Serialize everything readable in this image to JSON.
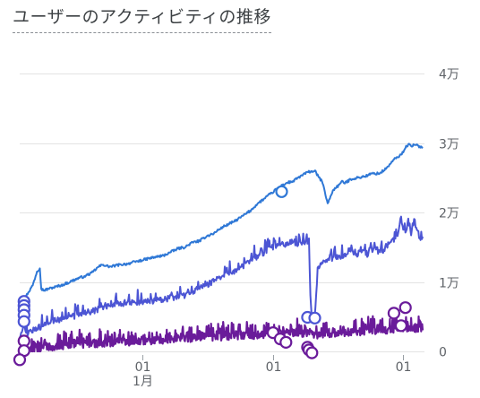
{
  "header": {
    "title": "ユーザーのアクティビティの推移"
  },
  "chart_data": {
    "type": "line",
    "title": "ユーザーのアクティビティの推移",
    "xlabel": "",
    "ylabel": "",
    "ylim": [
      0,
      40000
    ],
    "grid": true,
    "legend": "none",
    "y_ticks": [
      {
        "value": 0,
        "label": "0"
      },
      {
        "value": 10000,
        "label": "1万"
      },
      {
        "value": 20000,
        "label": "2万"
      },
      {
        "value": 30000,
        "label": "3万"
      },
      {
        "value": 40000,
        "label": "4万"
      }
    ],
    "x_ticks": [
      {
        "day": 85,
        "label": "01",
        "sublabel": "1月"
      },
      {
        "day": 176,
        "label": "01",
        "sublabel": ""
      },
      {
        "day": 266,
        "label": "01",
        "sublabel": ""
      }
    ],
    "x_range_days": [
      0,
      280
    ],
    "series": [
      {
        "color": "#2f78d6",
        "x": [
          0,
          3,
          6,
          9,
          12,
          14,
          15,
          17,
          20,
          25,
          30,
          35,
          40,
          45,
          50,
          55,
          58,
          60,
          63,
          70,
          75,
          80,
          85,
          90,
          95,
          100,
          105,
          110,
          115,
          120,
          125,
          130,
          135,
          140,
          145,
          150,
          155,
          160,
          165,
          170,
          175,
          180,
          185,
          190,
          195,
          200,
          205,
          208,
          210,
          212,
          214,
          216,
          218,
          220,
          222,
          224,
          226,
          230,
          235,
          240,
          245,
          250,
          255,
          260,
          265,
          268,
          270,
          272,
          275,
          278,
          280
        ],
        "values": [
          5500,
          7500,
          8500,
          9500,
          11500,
          12000,
          9000,
          8800,
          9000,
          9300,
          9600,
          10000,
          10500,
          10800,
          11300,
          12200,
          12500,
          12300,
          12200,
          12500,
          12600,
          12900,
          13100,
          13400,
          13600,
          13800,
          14300,
          14800,
          15000,
          15700,
          15900,
          16600,
          17000,
          17800,
          18300,
          18800,
          19500,
          20200,
          21200,
          22000,
          22800,
          23600,
          24200,
          24500,
          25200,
          25800,
          26000,
          25000,
          24500,
          23000,
          21300,
          22300,
          23300,
          23600,
          24000,
          24500,
          24200,
          24800,
          25000,
          25200,
          25600,
          25600,
          26400,
          27600,
          28300,
          29300,
          29800,
          29600,
          29700,
          29500,
          29300
        ]
      },
      {
        "color": "#4c55d4",
        "x": [
          0,
          3,
          6,
          10,
          12,
          15,
          20,
          25,
          30,
          35,
          40,
          45,
          50,
          55,
          60,
          65,
          70,
          75,
          80,
          85,
          90,
          95,
          100,
          105,
          110,
          115,
          120,
          125,
          130,
          135,
          140,
          145,
          150,
          155,
          160,
          165,
          170,
          175,
          180,
          185,
          190,
          195,
          199,
          201,
          202,
          203,
          204,
          205,
          207,
          210,
          214,
          218,
          222,
          226,
          230,
          234,
          238,
          242,
          246,
          250,
          254,
          258,
          262,
          265,
          268,
          270,
          272,
          274,
          276,
          278,
          280
        ],
        "values": [
          2000,
          3500,
          2500,
          3000,
          3300,
          3600,
          4000,
          4300,
          4600,
          4900,
          5200,
          5500,
          5800,
          6100,
          6400,
          6700,
          6900,
          7000,
          7100,
          7200,
          7300,
          7300,
          7500,
          7700,
          7900,
          8100,
          8600,
          9100,
          9600,
          10100,
          10700,
          11200,
          11700,
          12300,
          13000,
          13700,
          14300,
          14900,
          15300,
          15500,
          15700,
          15500,
          15800,
          16000,
          8000,
          4500,
          4500,
          5000,
          11800,
          12500,
          13200,
          13500,
          13700,
          13800,
          14500,
          14000,
          14400,
          13800,
          14900,
          14300,
          14800,
          15600,
          16600,
          19000,
          16800,
          19200,
          16600,
          19000,
          17500,
          16400,
          16200
        ]
      },
      {
        "color": "#6a1b9a",
        "x": [
          0,
          10,
          20,
          30,
          40,
          50,
          60,
          70,
          80,
          90,
          100,
          110,
          120,
          130,
          140,
          150,
          160,
          170,
          175,
          180,
          185,
          190,
          195,
          200,
          205,
          210,
          215,
          220,
          225,
          230,
          235,
          240,
          245,
          250,
          255,
          260,
          265,
          270,
          275,
          280
        ],
        "values": [
          0,
          300,
          600,
          800,
          1000,
          1100,
          1200,
          1300,
          1400,
          1500,
          1600,
          1800,
          1900,
          2000,
          2100,
          2200,
          2300,
          2400,
          2500,
          2500,
          2600,
          2700,
          2600,
          2500,
          2400,
          2400,
          2500,
          2600,
          2700,
          2700,
          2800,
          2900,
          3000,
          3000,
          3100,
          3200,
          3300,
          3300,
          3300,
          3400
        ]
      }
    ],
    "markers": [
      {
        "series": 1,
        "x": 3,
        "y": 7200
      },
      {
        "series": 1,
        "x": 3,
        "y": 6600
      },
      {
        "series": 1,
        "x": 3,
        "y": 6000
      },
      {
        "series": 1,
        "x": 3,
        "y": 5200
      },
      {
        "series": 1,
        "x": 3,
        "y": 4300
      },
      {
        "series": 2,
        "x": 3,
        "y": 1500
      },
      {
        "series": 2,
        "x": 3,
        "y": 100
      },
      {
        "series": 2,
        "x": 0,
        "y": -1200
      },
      {
        "series": 0,
        "x": 182,
        "y": 23000
      },
      {
        "series": 1,
        "x": 200,
        "y": 4900
      },
      {
        "series": 1,
        "x": 205,
        "y": 4800
      },
      {
        "series": 2,
        "x": 176,
        "y": 2700
      },
      {
        "series": 2,
        "x": 181,
        "y": 1800
      },
      {
        "series": 2,
        "x": 185,
        "y": 1300
      },
      {
        "series": 2,
        "x": 200,
        "y": 600
      },
      {
        "series": 2,
        "x": 201,
        "y": 200
      },
      {
        "series": 2,
        "x": 203,
        "y": -200
      },
      {
        "series": 2,
        "x": 260,
        "y": 5500
      },
      {
        "series": 2,
        "x": 265,
        "y": 3700
      },
      {
        "series": 2,
        "x": 268,
        "y": 6300
      }
    ]
  }
}
